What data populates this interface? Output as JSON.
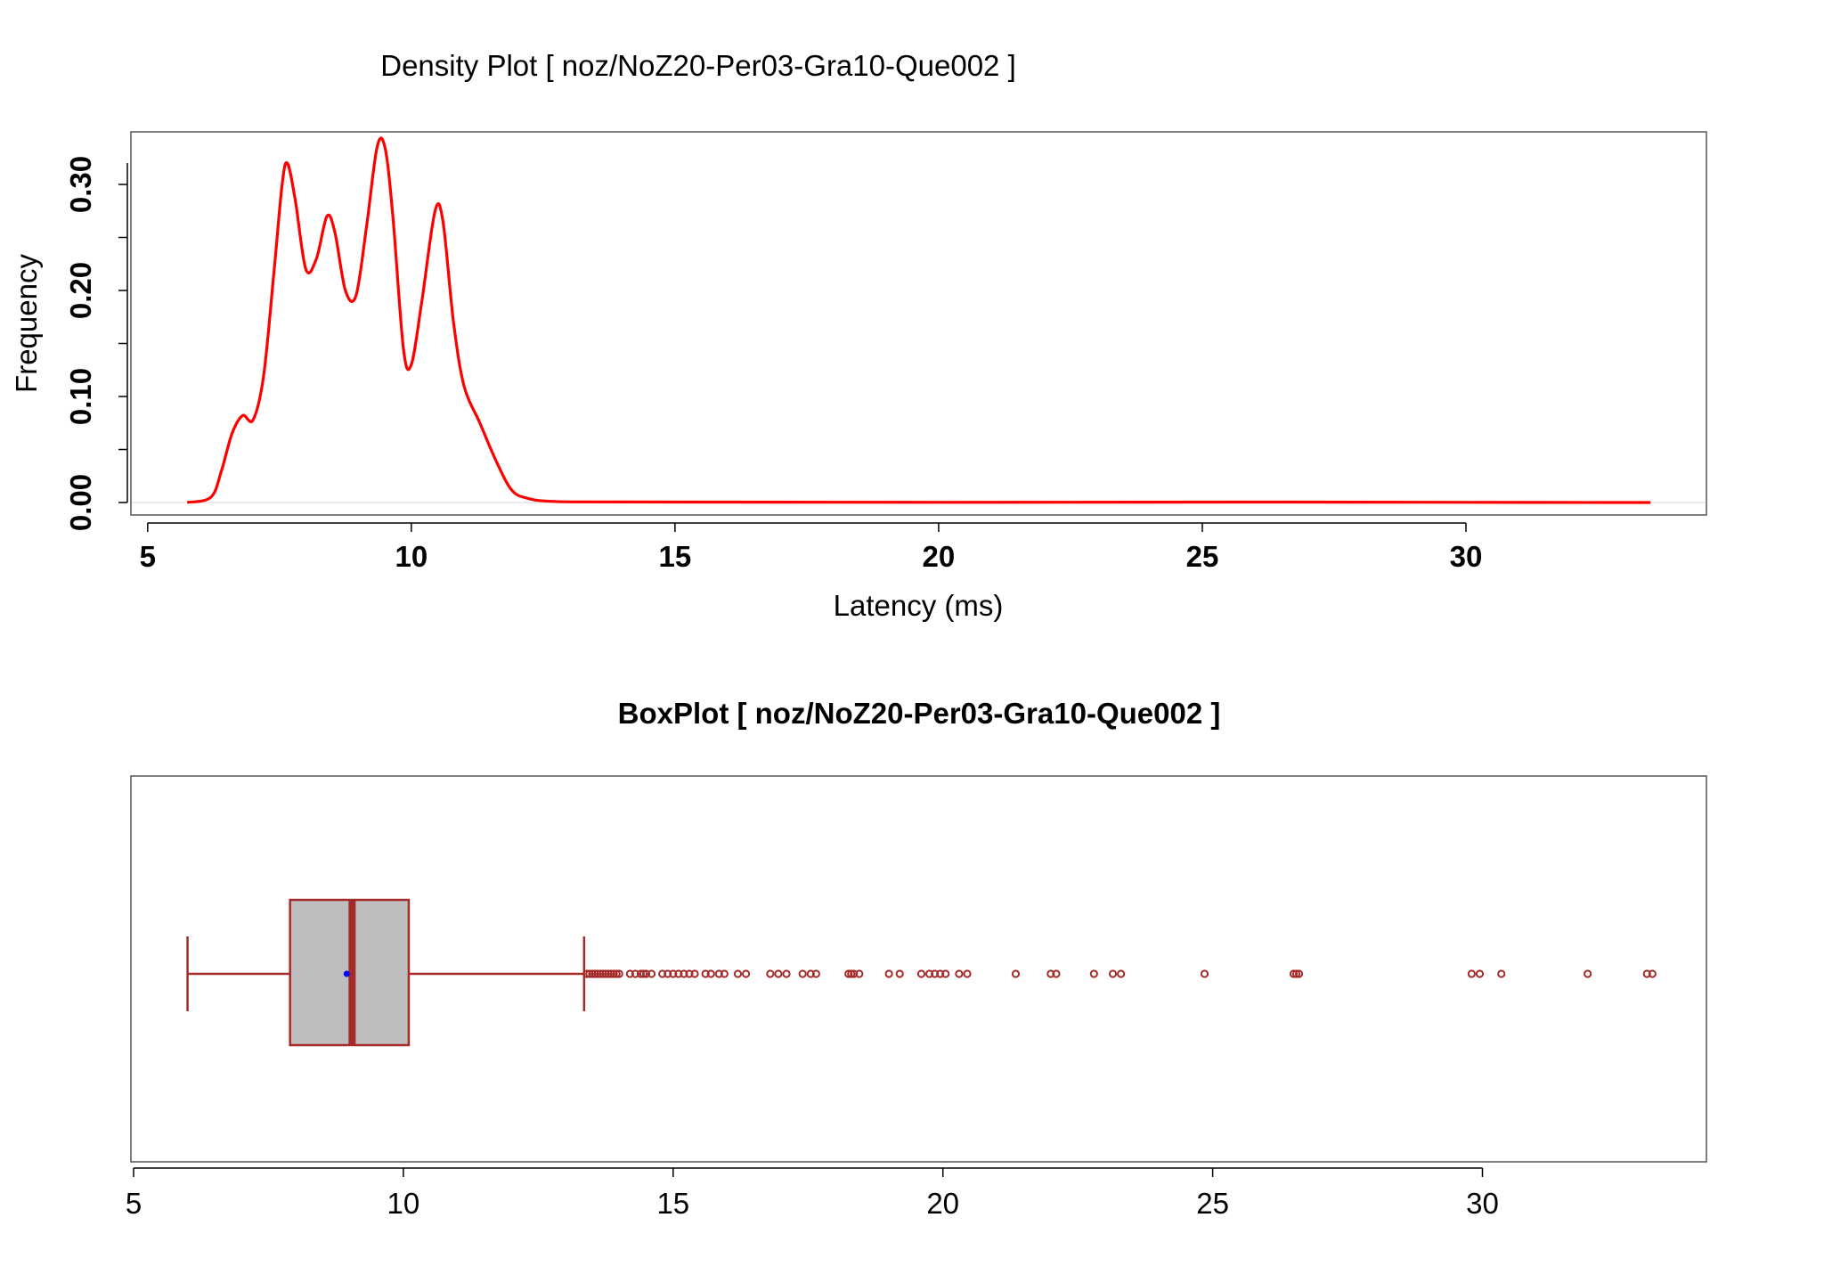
{
  "chart_data": [
    {
      "type": "line",
      "title": "Density Plot [ noz/NoZ20-Per03-Gra10-Que002 ]",
      "xlabel": "Latency (ms)",
      "ylabel": "Frequency",
      "xlim": [
        5,
        35
      ],
      "ylim": [
        0,
        0.35
      ],
      "x_ticks": [
        "5",
        "10",
        "15",
        "20",
        "25",
        "30"
      ],
      "y_ticks": [
        "0.00",
        "0.10",
        "0.20",
        "0.30"
      ],
      "grid": false,
      "series": [
        {
          "color": "#ff0000",
          "points": [
            [
              5.75,
              0.0
            ],
            [
              6.2,
              0.005
            ],
            [
              6.4,
              0.03
            ],
            [
              6.6,
              0.065
            ],
            [
              6.8,
              0.082
            ],
            [
              7.0,
              0.078
            ],
            [
              7.2,
              0.12
            ],
            [
              7.4,
              0.22
            ],
            [
              7.55,
              0.3
            ],
            [
              7.65,
              0.32
            ],
            [
              7.8,
              0.285
            ],
            [
              8.0,
              0.22
            ],
            [
              8.2,
              0.23
            ],
            [
              8.4,
              0.27
            ],
            [
              8.55,
              0.255
            ],
            [
              8.75,
              0.2
            ],
            [
              8.95,
              0.195
            ],
            [
              9.15,
              0.26
            ],
            [
              9.35,
              0.335
            ],
            [
              9.5,
              0.335
            ],
            [
              9.65,
              0.27
            ],
            [
              9.85,
              0.145
            ],
            [
              10.0,
              0.13
            ],
            [
              10.2,
              0.19
            ],
            [
              10.45,
              0.275
            ],
            [
              10.6,
              0.265
            ],
            [
              10.8,
              0.17
            ],
            [
              11.0,
              0.11
            ],
            [
              11.3,
              0.075
            ],
            [
              11.6,
              0.04
            ],
            [
              11.9,
              0.012
            ],
            [
              12.2,
              0.004
            ],
            [
              12.7,
              0.001
            ],
            [
              14.0,
              0.0005
            ],
            [
              20.0,
              0.0002
            ],
            [
              26.5,
              0.0004
            ],
            [
              30.0,
              0.0002
            ],
            [
              33.5,
              0.0
            ]
          ]
        }
      ]
    },
    {
      "type": "boxplot",
      "title": "BoxPlot [ noz/NoZ20-Per03-Gra10-Que002 ]",
      "xlim": [
        5,
        35
      ],
      "x_ticks": [
        "5",
        "10",
        "15",
        "20",
        "25",
        "30"
      ],
      "whisker_low": 6.0,
      "q1": 7.9,
      "median": 9.05,
      "mean": 8.95,
      "q3": 10.1,
      "whisker_high": 13.35,
      "box_color": "#bebebe",
      "line_color": "#a52a2a",
      "mean_color": "#0000ff",
      "outliers": [
        13.4,
        13.45,
        13.5,
        13.55,
        13.6,
        13.65,
        13.7,
        13.75,
        13.8,
        13.85,
        13.9,
        13.95,
        14.0,
        14.2,
        14.3,
        14.4,
        14.45,
        14.5,
        14.6,
        14.8,
        14.9,
        15.0,
        15.1,
        15.2,
        15.3,
        15.4,
        15.6,
        15.7,
        15.85,
        15.95,
        16.2,
        16.35,
        16.8,
        16.95,
        17.1,
        17.4,
        17.55,
        17.65,
        18.25,
        18.3,
        18.35,
        18.45,
        19.0,
        19.2,
        19.6,
        19.75,
        19.85,
        19.95,
        20.05,
        20.3,
        20.45,
        21.35,
        22.0,
        22.1,
        22.8,
        23.15,
        23.3,
        24.85,
        26.5,
        26.55,
        26.6,
        29.8,
        29.95,
        30.35,
        31.95,
        33.05,
        33.15
      ]
    }
  ]
}
